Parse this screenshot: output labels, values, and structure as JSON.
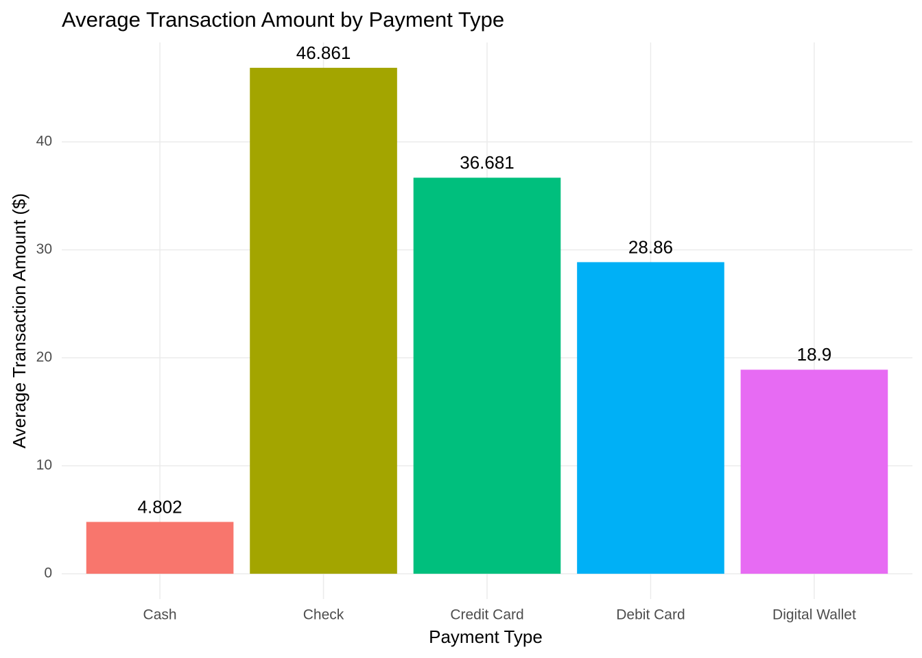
{
  "chart_data": {
    "type": "bar",
    "title": "Average Transaction Amount by Payment Type",
    "x_label": "Payment Type",
    "y_label": "Average Transaction Amount ($)",
    "categories": [
      "Cash",
      "Check",
      "Credit Card",
      "Debit Card",
      "Digital Wallet"
    ],
    "values": [
      4.802,
      46.861,
      36.681,
      28.86,
      18.9
    ],
    "colors": [
      "#F8766D",
      "#A3A500",
      "#00BF7D",
      "#00B0F6",
      "#E76BF3"
    ],
    "ylim": [
      -2.343,
      49.204
    ],
    "yticks": [
      0,
      10,
      20,
      30,
      40
    ],
    "grid": true
  }
}
